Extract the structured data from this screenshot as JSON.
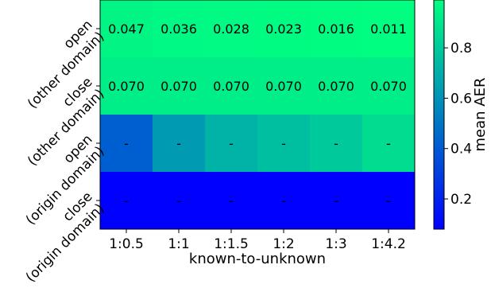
{
  "chart_data": {
    "type": "heatmap",
    "title": "",
    "xlabel": "known-to-unknown",
    "ylabel": "",
    "x_categories": [
      "1:0.5",
      "1:1",
      "1:1.5",
      "1:2",
      "1:3",
      "1:4.2"
    ],
    "y_categories": [
      {
        "line1": "open",
        "line2": "(other domain)"
      },
      {
        "line1": "close",
        "line2": "(other domain)"
      },
      {
        "line1": "open",
        "line2": "(origin domain)"
      },
      {
        "line1": "close",
        "line2": "(origin domain)"
      }
    ],
    "values": [
      [
        0.953,
        0.964,
        0.972,
        0.977,
        0.984,
        0.989
      ],
      [
        0.93,
        0.93,
        0.93,
        0.93,
        0.93,
        0.93
      ],
      [
        0.42,
        0.63,
        0.72,
        0.76,
        0.8,
        0.87
      ],
      [
        0.08,
        0.08,
        0.08,
        0.08,
        0.08,
        0.08
      ]
    ],
    "cell_labels": [
      [
        "0.047",
        "0.036",
        "0.028",
        "0.023",
        "0.016",
        "0.011"
      ],
      [
        "0.070",
        "0.070",
        "0.070",
        "0.070",
        "0.070",
        "0.070"
      ],
      [
        "-",
        "-",
        "-",
        "-",
        "-",
        "-"
      ],
      [
        "-",
        "-",
        "-",
        "-",
        "-",
        "-"
      ]
    ],
    "colormap": "winter",
    "colormap_start": "#0000ff",
    "colormap_end": "#00ff80",
    "colorbar": {
      "label": "mean AER",
      "range": [
        0.08,
        0.99
      ],
      "ticks": [
        "0.2",
        "0.4",
        "0.6",
        "0.8"
      ],
      "tick_values": [
        0.2,
        0.4,
        0.6,
        0.8
      ]
    },
    "grid": false
  }
}
